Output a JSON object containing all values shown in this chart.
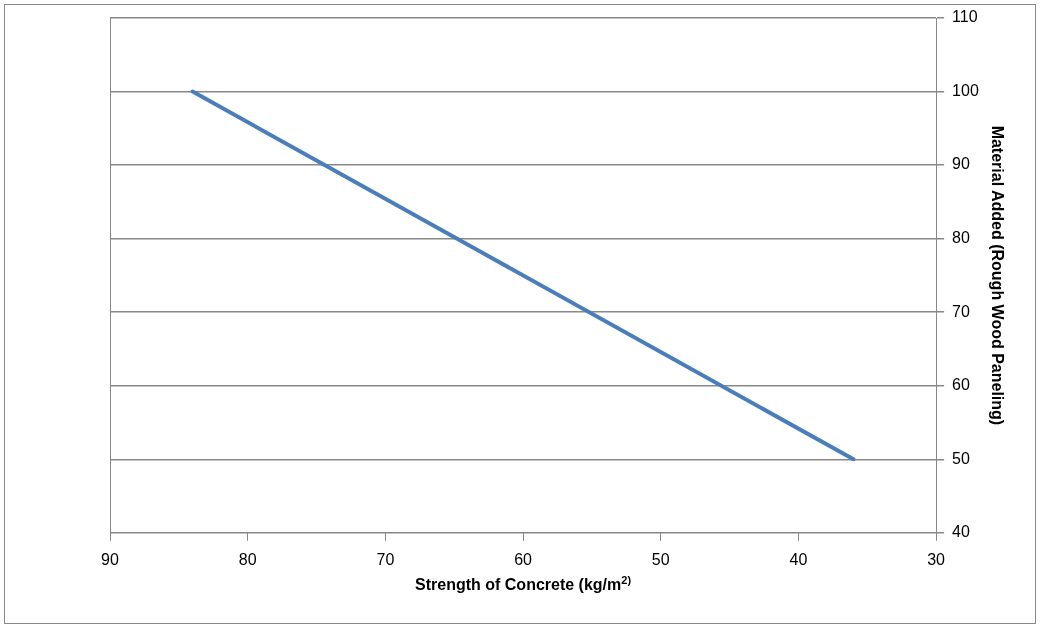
{
  "chart_data": {
    "type": "line",
    "xlabel": "Strength of Concrete (kg/m$^{2)}$",
    "ylabel": "Material Added (Rough Wood Paneling)",
    "x": [
      84,
      36
    ],
    "series": [
      {
        "color": "#4a7ebb",
        "values": [
          100,
          50
        ]
      }
    ],
    "xlim": [
      90,
      30
    ],
    "xticks": [
      90,
      80,
      70,
      60,
      50,
      40,
      30
    ],
    "ylim": [
      40,
      110
    ],
    "yticks": [
      40,
      50,
      60,
      70,
      80,
      90,
      100,
      110
    ],
    "grid": "y",
    "legend": false,
    "marker": "none",
    "line_style": "solid"
  }
}
